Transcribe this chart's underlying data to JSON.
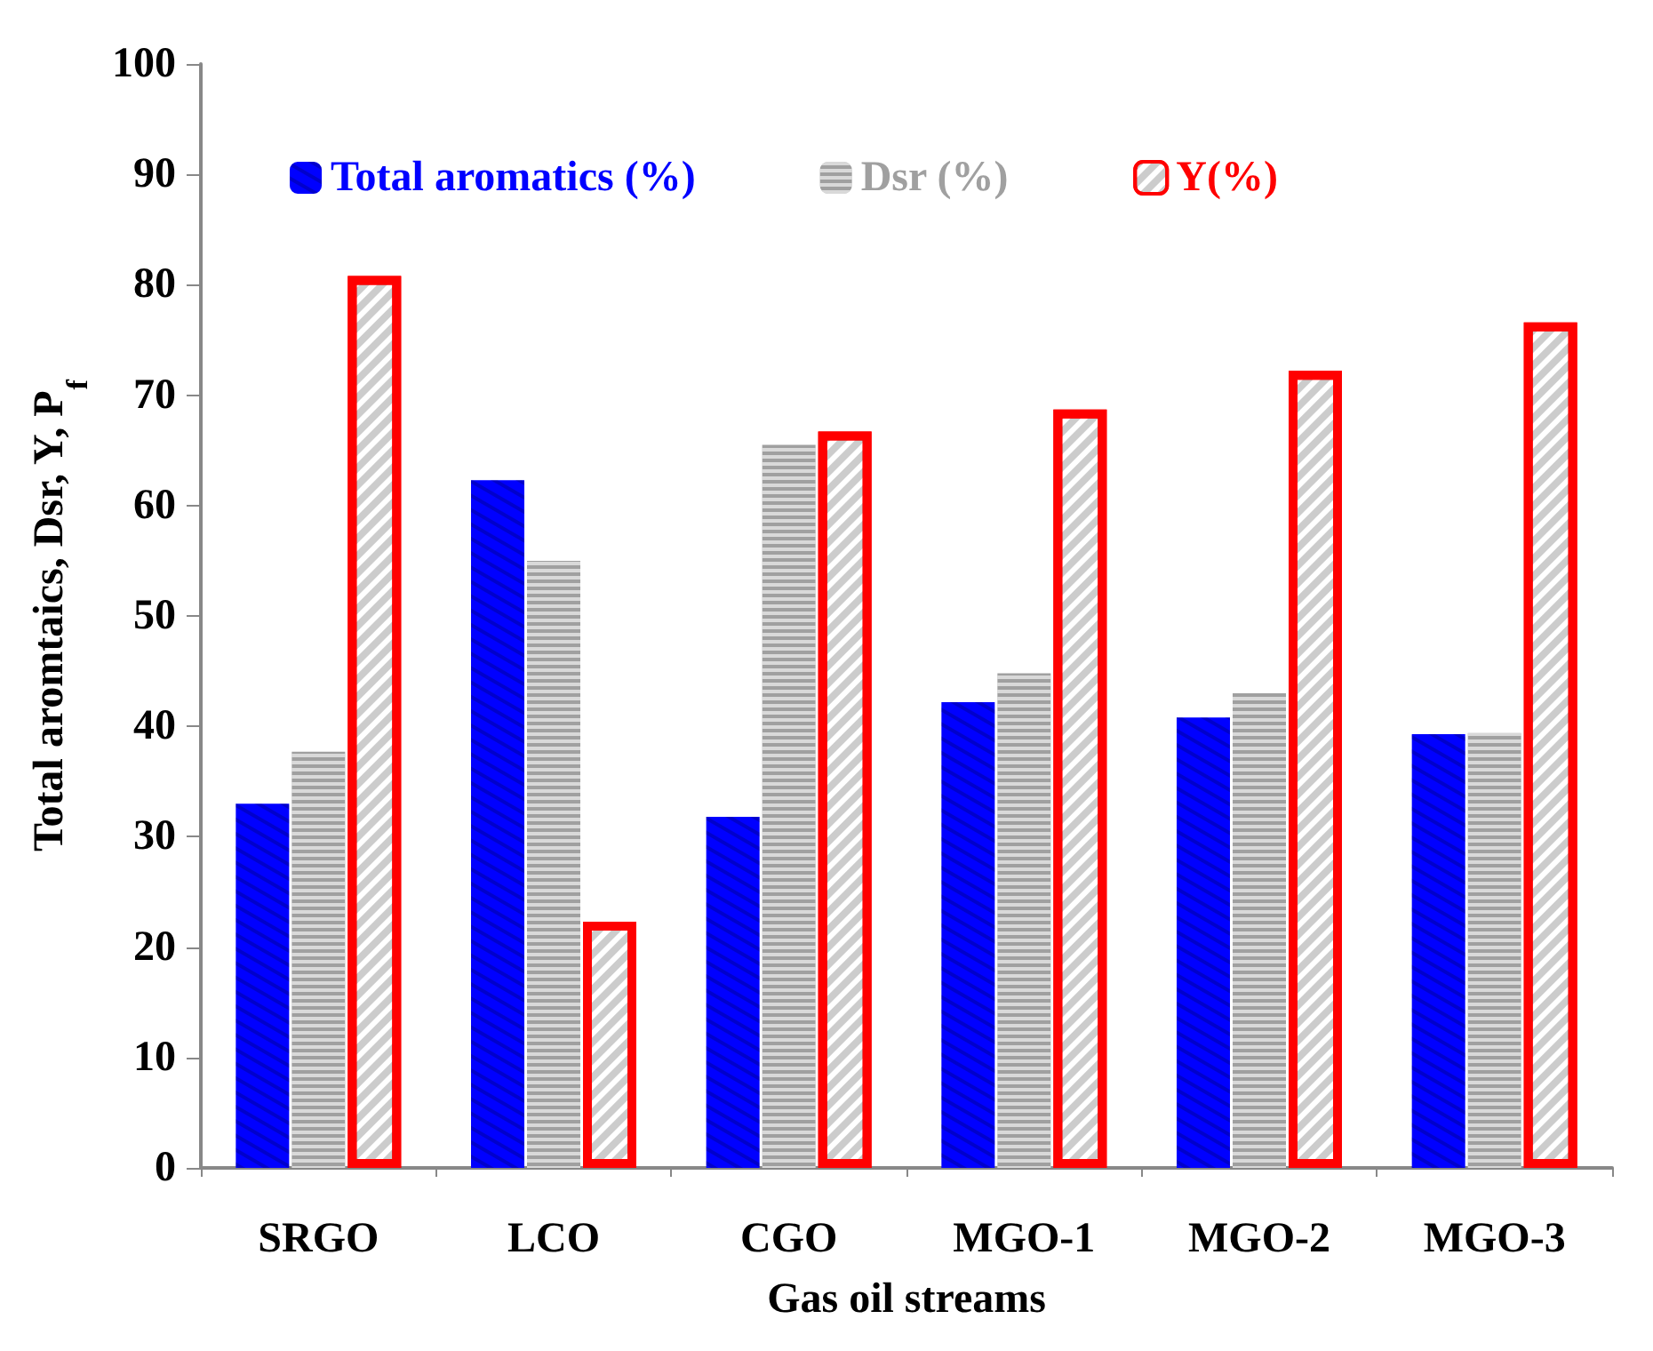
{
  "chart_data": {
    "type": "bar",
    "xlabel": "Gas oil streams",
    "ylabel": "Total aromtaics, Dsr, Y, P$_{f}$",
    "categories": [
      "SRGO",
      "LCO",
      "CGO",
      "MGO-1",
      "MGO-2",
      "MGO-3"
    ],
    "series": [
      {
        "name": "Total aromatics (%)",
        "color": "#0000ff",
        "values": [
          33.0,
          62.3,
          31.8,
          42.2,
          40.8,
          39.3
        ]
      },
      {
        "name": "Dsr (%)",
        "color": "#a0a0a0",
        "values": [
          37.7,
          55.0,
          65.5,
          44.8,
          43.0,
          39.4
        ]
      },
      {
        "name": "Y(%)",
        "color": "#ff0000",
        "values": [
          80.8,
          22.3,
          66.7,
          68.7,
          72.2,
          76.6
        ]
      }
    ],
    "ylim": [
      0,
      100
    ],
    "yticks": [
      0,
      10,
      20,
      30,
      40,
      50,
      60,
      70,
      80,
      90,
      100
    ],
    "grid": false,
    "legend": "top"
  }
}
